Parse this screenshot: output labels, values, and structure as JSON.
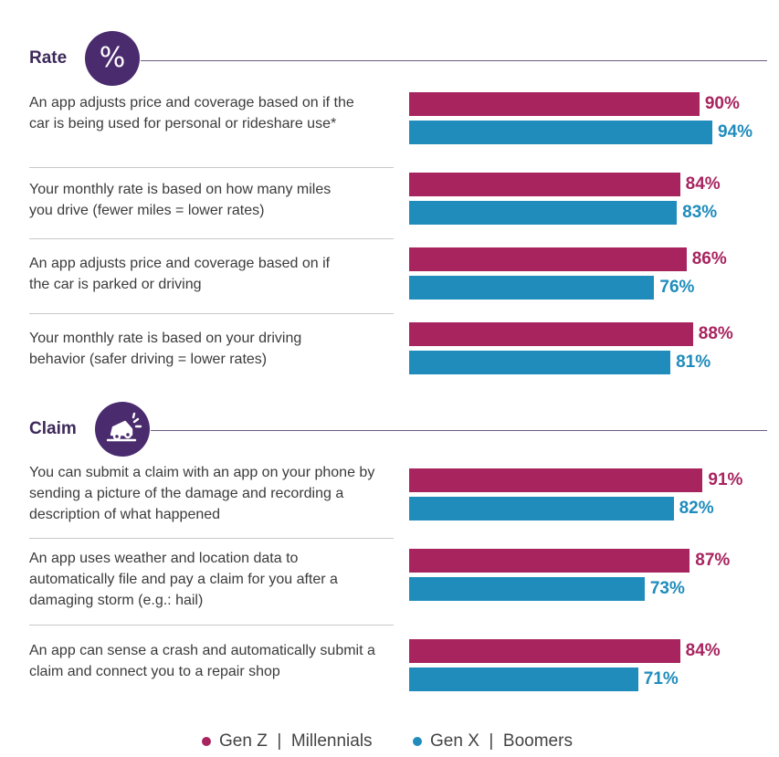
{
  "colors": {
    "gen_z_millennials": "#a8245f",
    "gen_x_boomers": "#1f8cbc",
    "badge": "#4a2c6e",
    "heading": "#3d2a5a"
  },
  "sections": [
    {
      "title": "Rate",
      "icon": "percent-icon",
      "icon_glyph": "%"
    },
    {
      "title": "Claim",
      "icon": "car-crash-icon",
      "icon_glyph": ""
    }
  ],
  "chart_data": {
    "type": "bar",
    "orientation": "horizontal",
    "unit": "%",
    "categories": [
      "An app adjusts price and coverage based on if the car is being used for personal or rideshare use*",
      "Your monthly rate is based on how many miles you drive (fewer miles = lower rates)",
      "An app adjusts price and coverage based on if the car is parked or driving",
      "Your monthly rate is based on your driving behavior (safer driving = lower rates)",
      "You can submit a claim with an app on your phone by sending a picture of the damage and recording a description of what happened",
      "An app uses weather and location data to automatically file and pay a claim for you after a damaging storm (e.g.: hail)",
      "An app can sense a crash and automatically submit a claim and connect you to a repair shop"
    ],
    "series": [
      {
        "name": "Gen Z | Millennials",
        "values": [
          90,
          84,
          86,
          88,
          91,
          87,
          84
        ],
        "labels": [
          "90%",
          "84%",
          "86%",
          "88%",
          "91%",
          "87%",
          "84%"
        ]
      },
      {
        "name": "Gen X | Boomers",
        "values": [
          94,
          83,
          76,
          81,
          82,
          73,
          71
        ],
        "labels": [
          "94%",
          "83%",
          "76%",
          "81%",
          "82%",
          "73%",
          "71%"
        ]
      }
    ],
    "legend_position": "bottom"
  },
  "legend": {
    "gen_z": "Gen Z  |  Millennials",
    "gen_x": "Gen X  |  Boomers"
  }
}
